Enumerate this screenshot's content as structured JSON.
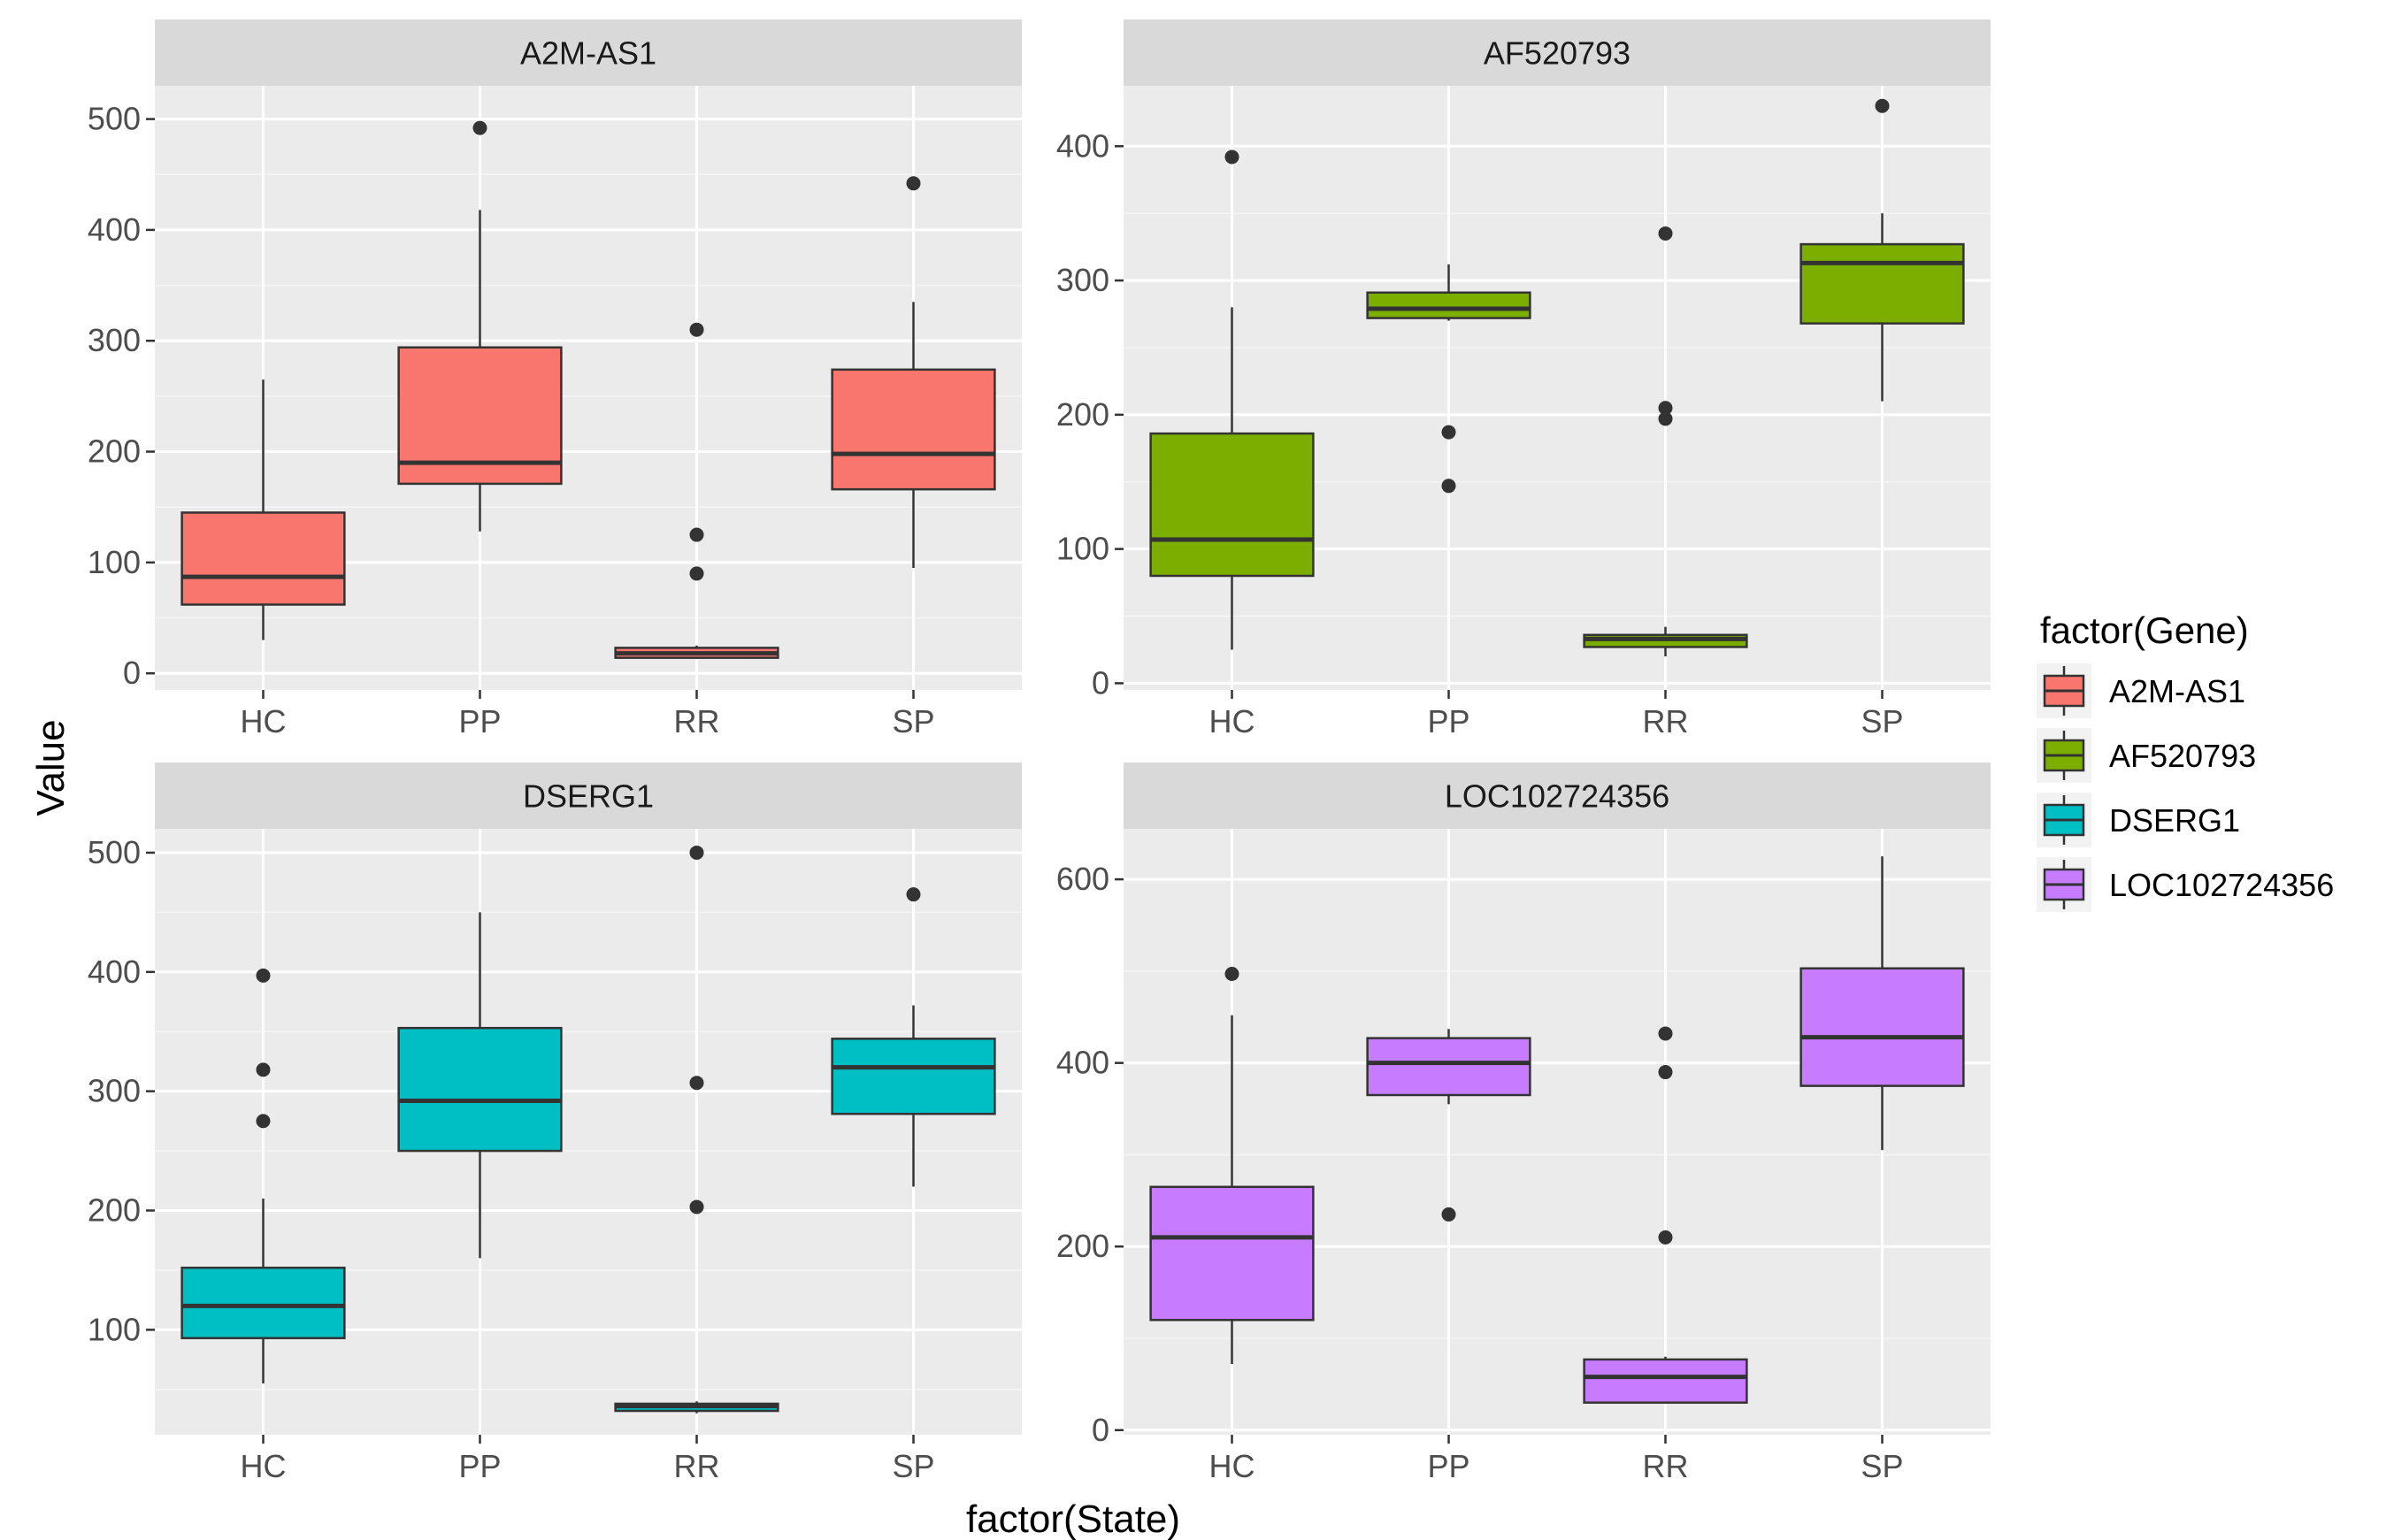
{
  "chart_data": {
    "type": "box",
    "xlabel": "factor(State)",
    "ylabel": "Value",
    "legend": {
      "title": "factor(Gene)",
      "position": "right",
      "items": [
        {
          "label": "A2M-AS1",
          "color": "#F8766D"
        },
        {
          "label": "AF520793",
          "color": "#7CAE00"
        },
        {
          "label": "DSERG1",
          "color": "#00BFC4"
        },
        {
          "label": "LOC102724356",
          "color": "#C77CFF"
        }
      ]
    },
    "categories": [
      "HC",
      "PP",
      "RR",
      "SP"
    ],
    "panels": [
      {
        "title": "A2M-AS1",
        "color": "#F8766D",
        "ylim": [
          -15,
          530
        ],
        "yticks": [
          0,
          100,
          200,
          300,
          400,
          500
        ],
        "boxes": [
          {
            "category": "HC",
            "whisker_low": 30,
            "q1": 62,
            "median": 87,
            "q3": 145,
            "whisker_high": 265,
            "outliers": []
          },
          {
            "category": "PP",
            "whisker_low": 128,
            "q1": 171,
            "median": 190,
            "q3": 294,
            "whisker_high": 418,
            "outliers": [
              492
            ]
          },
          {
            "category": "RR",
            "whisker_low": 13,
            "q1": 14,
            "median": 18,
            "q3": 23,
            "whisker_high": 25,
            "outliers": [
              90,
              125,
              310
            ]
          },
          {
            "category": "SP",
            "whisker_low": 95,
            "q1": 166,
            "median": 198,
            "q3": 274,
            "whisker_high": 335,
            "outliers": [
              442
            ]
          }
        ]
      },
      {
        "title": "AF520793",
        "color": "#7CAE00",
        "ylim": [
          -5,
          445
        ],
        "yticks": [
          0,
          100,
          200,
          300,
          400
        ],
        "boxes": [
          {
            "category": "HC",
            "whisker_low": 25,
            "q1": 80,
            "median": 107,
            "q3": 186,
            "whisker_high": 280,
            "outliers": [
              392
            ]
          },
          {
            "category": "PP",
            "whisker_low": 270,
            "q1": 272,
            "median": 279,
            "q3": 291,
            "whisker_high": 312,
            "outliers": [
              147,
              187
            ]
          },
          {
            "category": "RR",
            "whisker_low": 20,
            "q1": 27,
            "median": 33,
            "q3": 36,
            "whisker_high": 42,
            "outliers": [
              197,
              205,
              335
            ]
          },
          {
            "category": "SP",
            "whisker_low": 210,
            "q1": 268,
            "median": 313,
            "q3": 327,
            "whisker_high": 350,
            "outliers": [
              430
            ]
          }
        ]
      },
      {
        "title": "DSERG1",
        "color": "#00BFC4",
        "ylim": [
          12,
          520
        ],
        "yticks": [
          100,
          200,
          300,
          400,
          500
        ],
        "boxes": [
          {
            "category": "HC",
            "whisker_low": 55,
            "q1": 93,
            "median": 120,
            "q3": 152,
            "whisker_high": 210,
            "outliers": [
              275,
              318,
              397
            ]
          },
          {
            "category": "PP",
            "whisker_low": 160,
            "q1": 250,
            "median": 292,
            "q3": 353,
            "whisker_high": 450,
            "outliers": []
          },
          {
            "category": "RR",
            "whisker_low": 30,
            "q1": 32,
            "median": 36,
            "q3": 38,
            "whisker_high": 40,
            "outliers": [
              203,
              307,
              500
            ]
          },
          {
            "category": "SP",
            "whisker_low": 220,
            "q1": 281,
            "median": 320,
            "q3": 344,
            "whisker_high": 372,
            "outliers": [
              465
            ]
          }
        ]
      },
      {
        "title": "LOC102724356",
        "color": "#C77CFF",
        "ylim": [
          -5,
          655
        ],
        "yticks": [
          0,
          200,
          400,
          600
        ],
        "boxes": [
          {
            "category": "HC",
            "whisker_low": 72,
            "q1": 120,
            "median": 210,
            "q3": 265,
            "whisker_high": 452,
            "outliers": [
              497
            ]
          },
          {
            "category": "PP",
            "whisker_low": 355,
            "q1": 365,
            "median": 400,
            "q3": 427,
            "whisker_high": 437,
            "outliers": [
              235
            ]
          },
          {
            "category": "RR",
            "whisker_low": 30,
            "q1": 30,
            "median": 58,
            "q3": 77,
            "whisker_high": 80,
            "outliers": [
              210,
              390,
              432
            ]
          },
          {
            "category": "SP",
            "whisker_low": 305,
            "q1": 375,
            "median": 428,
            "q3": 503,
            "whisker_high": 625,
            "outliers": []
          }
        ]
      }
    ]
  }
}
